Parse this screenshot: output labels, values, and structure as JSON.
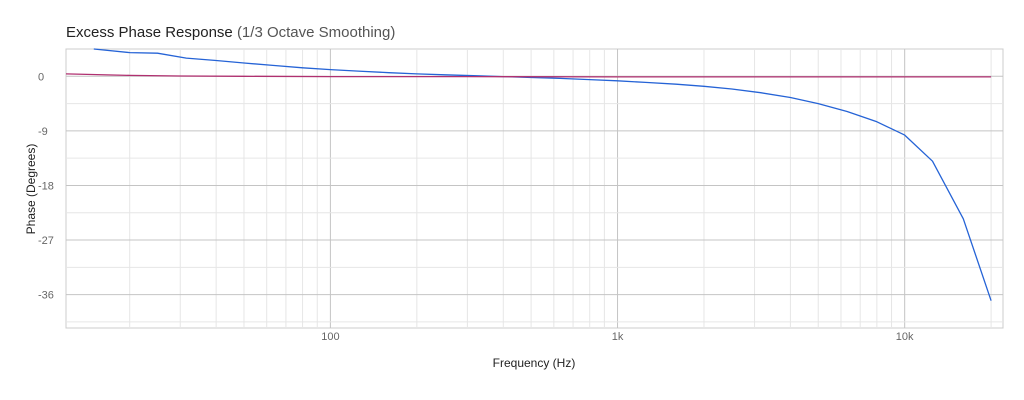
{
  "chart_data": {
    "type": "line",
    "title": "Excess Phase Response",
    "subtitle": "(1/3 Octave Smoothing)",
    "xlabel": "Frequency (Hz)",
    "ylabel": "Phase (Degrees)",
    "xscale": "log",
    "xlim": [
      12,
      22000
    ],
    "ylim": [
      -41.5,
      4.5
    ],
    "x_ticks": [
      {
        "value": 100,
        "label": "100"
      },
      {
        "value": 1000,
        "label": "1k"
      },
      {
        "value": 10000,
        "label": "10k"
      }
    ],
    "y_ticks": [
      0,
      -9,
      -18,
      -27,
      -36
    ],
    "grid": true,
    "legend": "none",
    "series": [
      {
        "color": "#2563d6",
        "x": [
          15,
          20,
          25,
          31.5,
          40,
          50,
          63,
          80,
          100,
          125,
          160,
          200,
          250,
          315,
          400,
          500,
          630,
          800,
          1000,
          1250,
          1600,
          2000,
          2500,
          3150,
          4000,
          5000,
          6300,
          8000,
          10000,
          12500,
          16000,
          20000
        ],
        "values": [
          4.5,
          3.9,
          3.8,
          3.0,
          2.6,
          2.2,
          1.8,
          1.4,
          1.1,
          0.85,
          0.6,
          0.4,
          0.25,
          0.1,
          -0.05,
          -0.2,
          -0.35,
          -0.55,
          -0.75,
          -1.0,
          -1.3,
          -1.65,
          -2.1,
          -2.7,
          -3.5,
          -4.5,
          -5.8,
          -7.5,
          -9.7,
          -14.0,
          -23.5,
          -37.0
        ]
      },
      {
        "color": "#b03070",
        "x": [
          12,
          20,
          30,
          50,
          100,
          300,
          1000,
          10000,
          20000
        ],
        "values": [
          0.4,
          0.15,
          0.05,
          0.0,
          -0.05,
          -0.05,
          -0.1,
          -0.1,
          -0.1
        ]
      }
    ]
  }
}
